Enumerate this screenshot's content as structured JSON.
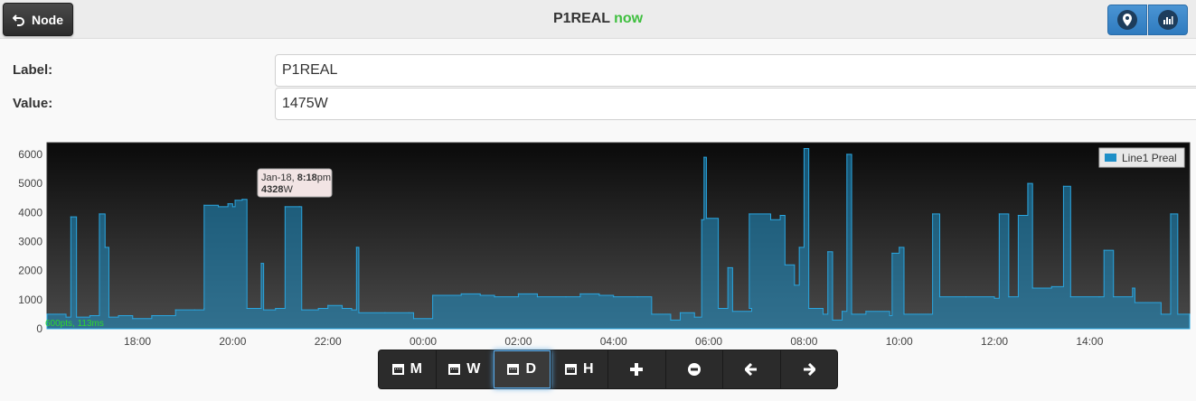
{
  "header": {
    "back_label": "Node",
    "title": "P1REAL",
    "status": "now"
  },
  "form": {
    "label_caption": "Label:",
    "label_value": "P1REAL",
    "value_caption": "Value:",
    "value_value": "1475W"
  },
  "chart_data": {
    "type": "area",
    "y_ticks": [
      0,
      1000,
      2000,
      3000,
      4000,
      5000,
      6000
    ],
    "x_ticks": [
      "18:00",
      "20:00",
      "22:00",
      "00:00",
      "02:00",
      "04:00",
      "06:00",
      "08:00",
      "10:00",
      "12:00",
      "14:00"
    ],
    "x_tick_hours": [
      18,
      20,
      22,
      24,
      26,
      28,
      30,
      32,
      34,
      36,
      38
    ],
    "xlim_hours": [
      16.1,
      40.1
    ],
    "ylim": [
      0,
      6400
    ],
    "grid": false,
    "legend": "top-right",
    "series": [
      {
        "name": "Line1 Preal",
        "color": "#1e8fc7",
        "points": [
          [
            16.1,
            500
          ],
          [
            16.5,
            400
          ],
          [
            16.6,
            3850
          ],
          [
            16.72,
            400
          ],
          [
            17.0,
            450
          ],
          [
            17.2,
            3950
          ],
          [
            17.32,
            2800
          ],
          [
            17.4,
            400
          ],
          [
            17.6,
            450
          ],
          [
            17.9,
            350
          ],
          [
            18.3,
            450
          ],
          [
            18.8,
            650
          ],
          [
            19.2,
            650
          ],
          [
            19.4,
            700
          ],
          [
            19.4,
            4250
          ],
          [
            19.7,
            4200
          ],
          [
            19.9,
            4300
          ],
          [
            20.0,
            4200
          ],
          [
            20.05,
            4420
          ],
          [
            20.2,
            4450
          ],
          [
            20.3,
            700
          ],
          [
            20.6,
            2250
          ],
          [
            20.65,
            650
          ],
          [
            20.9,
            700
          ],
          [
            21.1,
            4200
          ],
          [
            21.4,
            4200
          ],
          [
            21.45,
            650
          ],
          [
            21.8,
            700
          ],
          [
            22.0,
            800
          ],
          [
            22.3,
            700
          ],
          [
            22.5,
            650
          ],
          [
            22.6,
            2800
          ],
          [
            22.65,
            550
          ],
          [
            23.2,
            550
          ],
          [
            23.7,
            550
          ],
          [
            23.8,
            350
          ],
          [
            24.2,
            1150
          ],
          [
            24.8,
            1200
          ],
          [
            25.2,
            1150
          ],
          [
            25.5,
            1100
          ],
          [
            26.0,
            1200
          ],
          [
            26.4,
            1100
          ],
          [
            27.0,
            1100
          ],
          [
            27.3,
            1200
          ],
          [
            27.7,
            1150
          ],
          [
            28.0,
            1100
          ],
          [
            28.5,
            1100
          ],
          [
            28.8,
            500
          ],
          [
            29.2,
            300
          ],
          [
            29.4,
            550
          ],
          [
            29.7,
            400
          ],
          [
            29.85,
            3750
          ],
          [
            29.9,
            5900
          ],
          [
            29.95,
            3800
          ],
          [
            30.2,
            700
          ],
          [
            30.4,
            2100
          ],
          [
            30.5,
            600
          ],
          [
            30.9,
            700
          ],
          [
            30.85,
            3950
          ],
          [
            31.3,
            3750
          ],
          [
            31.5,
            3900
          ],
          [
            31.6,
            2200
          ],
          [
            31.8,
            1500
          ],
          [
            31.9,
            2800
          ],
          [
            32.0,
            6200
          ],
          [
            32.1,
            700
          ],
          [
            32.4,
            500
          ],
          [
            32.5,
            2650
          ],
          [
            32.6,
            300
          ],
          [
            32.8,
            600
          ],
          [
            32.9,
            6000
          ],
          [
            33.0,
            500
          ],
          [
            33.3,
            600
          ],
          [
            33.8,
            450
          ],
          [
            33.85,
            2600
          ],
          [
            34.0,
            2800
          ],
          [
            34.1,
            500
          ],
          [
            34.7,
            3950
          ],
          [
            34.85,
            1100
          ],
          [
            35.4,
            1100
          ],
          [
            36.0,
            1050
          ],
          [
            36.1,
            3950
          ],
          [
            36.3,
            1100
          ],
          [
            36.5,
            3900
          ],
          [
            36.7,
            5000
          ],
          [
            36.8,
            1400
          ],
          [
            37.2,
            1450
          ],
          [
            37.45,
            4900
          ],
          [
            37.6,
            1100
          ],
          [
            38.2,
            1100
          ],
          [
            38.3,
            2700
          ],
          [
            38.5,
            1100
          ],
          [
            38.9,
            1400
          ],
          [
            38.95,
            900
          ],
          [
            39.5,
            500
          ],
          [
            39.7,
            3950
          ],
          [
            39.85,
            500
          ],
          [
            40.1,
            500
          ]
        ]
      }
    ],
    "tooltip": {
      "date": "Jan-18, ",
      "time": "8:18",
      "suffix": "pm",
      "value": "4328",
      "unit": "W"
    },
    "footer_note": "600pts, 113ms"
  },
  "toolbar": {
    "buttons": [
      {
        "label": "M",
        "icon": "calendar-icon"
      },
      {
        "label": "W",
        "icon": "calendar-icon"
      },
      {
        "label": "D",
        "icon": "calendar-icon",
        "active": true
      },
      {
        "label": "H",
        "icon": "calendar-icon"
      },
      {
        "label": "",
        "icon": "plus-icon"
      },
      {
        "label": "",
        "icon": "minus-icon"
      },
      {
        "label": "",
        "icon": "arrow-left-icon"
      },
      {
        "label": "",
        "icon": "arrow-right-icon"
      }
    ]
  },
  "colors": {
    "accent": "#2f7bbf",
    "status_green": "#3fbf3f",
    "series_fill": "#1e8fc7",
    "chart_bg": "#111111"
  }
}
